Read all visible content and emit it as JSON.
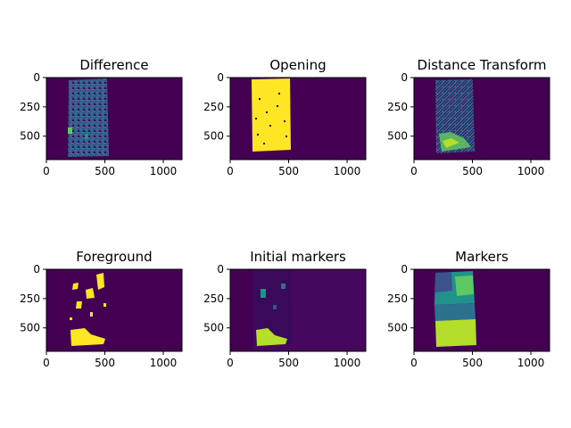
{
  "chart_data": [
    {
      "type": "heatmap",
      "title": "Difference",
      "xticks": [
        "0",
        "500",
        "1000"
      ],
      "yticks": [
        "0",
        "250",
        "500"
      ],
      "xlim": [
        0,
        1160
      ],
      "ylim": [
        700,
        0
      ],
      "content": "noisy-texture"
    },
    {
      "type": "heatmap",
      "title": "Opening",
      "xticks": [
        "0",
        "500",
        "1000"
      ],
      "yticks": [
        "0",
        "250",
        "500"
      ],
      "xlim": [
        0,
        1160
      ],
      "ylim": [
        700,
        0
      ],
      "content": "solid-mask-with-holes"
    },
    {
      "type": "heatmap",
      "title": "Distance Transform",
      "xticks": [
        "0",
        "500",
        "1000"
      ],
      "yticks": [
        "0",
        "250",
        "500"
      ],
      "xlim": [
        0,
        1160
      ],
      "ylim": [
        700,
        0
      ],
      "content": "gradient-mask"
    },
    {
      "type": "heatmap",
      "title": "Foreground",
      "xticks": [
        "0",
        "500",
        "1000"
      ],
      "yticks": [
        "0",
        "250",
        "500"
      ],
      "xlim": [
        0,
        1160
      ],
      "ylim": [
        700,
        0
      ],
      "content": "sparse-blobs"
    },
    {
      "type": "heatmap",
      "title": "Initial markers",
      "xticks": [
        "0",
        "500",
        "1000"
      ],
      "yticks": [
        "0",
        "250",
        "500"
      ],
      "xlim": [
        0,
        1160
      ],
      "ylim": [
        700,
        0
      ],
      "content": "marker-blobs"
    },
    {
      "type": "heatmap",
      "title": "Markers",
      "xticks": [
        "0",
        "500",
        "1000"
      ],
      "yticks": [
        "0",
        "250",
        "500"
      ],
      "xlim": [
        0,
        1160
      ],
      "ylim": [
        700,
        0
      ],
      "content": "segmented-regions"
    }
  ],
  "colors": {
    "viridis_dark": "#440154",
    "viridis_dark2": "#46085c",
    "viridis_blue": "#3b528b",
    "viridis_teal": "#21918c",
    "viridis_green": "#5ec962",
    "viridis_yellow": "#fde725",
    "viridis_lime": "#b5de2b"
  }
}
